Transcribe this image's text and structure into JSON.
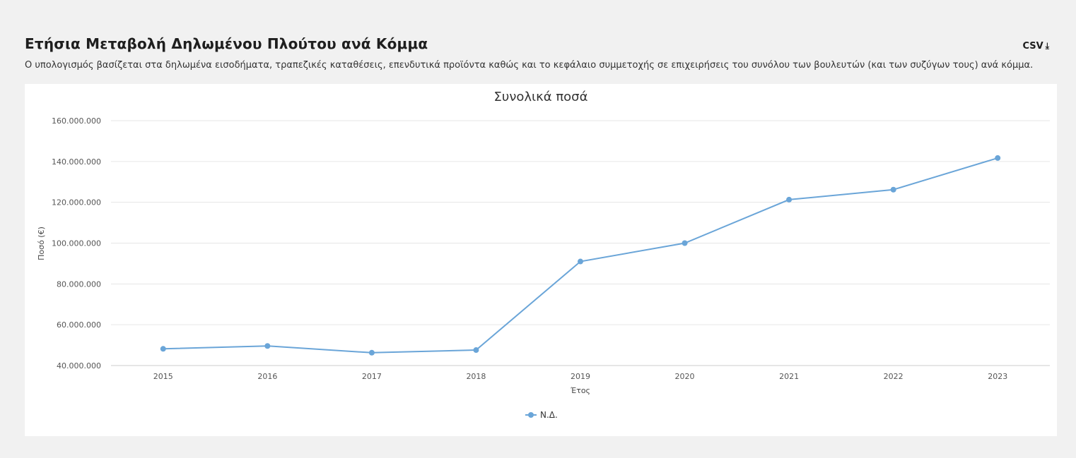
{
  "header": {
    "title": "Ετήσια Μεταβολή Δηλωμένου Πλούτου ανά Κόμμα",
    "subtitle": "Ο υπολογισμός βασίζεται στα δηλωμένα εισοδήματα, τραπεζικές καταθέσεις, επενδυτικά προϊόντα καθώς και το κεφάλαιο συμμετοχής σε επιχειρήσεις του συνόλου των βουλευτών (και των συζύγων τους) ανά κόμμα.",
    "csv_label": "CSV",
    "csv_icon": "download-icon"
  },
  "chart_data": {
    "type": "line",
    "title": "Συνολικά ποσά",
    "xlabel": "Έτος",
    "ylabel": "Ποσό (€)",
    "categories": [
      "2015",
      "2016",
      "2017",
      "2018",
      "2019",
      "2020",
      "2021",
      "2022",
      "2023"
    ],
    "ylim": [
      40000000,
      160000000
    ],
    "yticks": [
      40000000,
      60000000,
      80000000,
      100000000,
      120000000,
      140000000,
      160000000
    ],
    "ytick_labels": [
      "40.000.000",
      "60.000.000",
      "80.000.000",
      "100.000.000",
      "120.000.000",
      "140.000.000",
      "160.000.000"
    ],
    "grid": true,
    "legend_position": "bottom-center",
    "series": [
      {
        "name": "Ν.Δ.",
        "color": "#6aa5d8",
        "values": [
          48200000,
          49600000,
          46300000,
          47600000,
          91000000,
          100000000,
          121300000,
          126200000,
          141700000
        ]
      }
    ]
  }
}
